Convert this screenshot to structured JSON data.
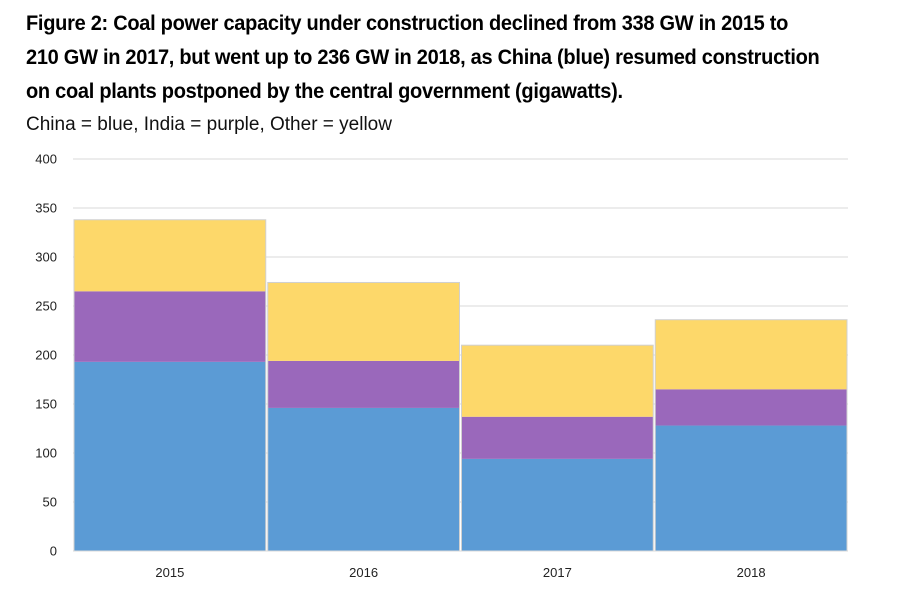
{
  "chart_data": {
    "type": "bar",
    "stacked": true,
    "title": "Figure 2: Coal power capacity under construction declined from 338 GW in 2015 to 210 GW in 2017, but went up to 236 GW in 2018, as China (blue) resumed construction on coal plants postponed by the central government (gigawatts).",
    "subtitle": "China = blue, India = purple, Other = yellow",
    "categories": [
      "2015",
      "2016",
      "2017",
      "2018"
    ],
    "series": [
      {
        "name": "China",
        "color": "#5b9bd5",
        "values": [
          193,
          146,
          94,
          128
        ]
      },
      {
        "name": "India",
        "color": "#9a68bb",
        "values": [
          72,
          48,
          43,
          37
        ]
      },
      {
        "name": "Other",
        "color": "#fdd86a",
        "values": [
          73,
          80,
          73,
          71
        ]
      }
    ],
    "ylim": [
      0,
      400
    ],
    "yticks": [
      "0",
      "50",
      "100",
      "150",
      "200",
      "250",
      "300",
      "350",
      "400"
    ],
    "grid": true,
    "xlabel": "",
    "ylabel": ""
  }
}
